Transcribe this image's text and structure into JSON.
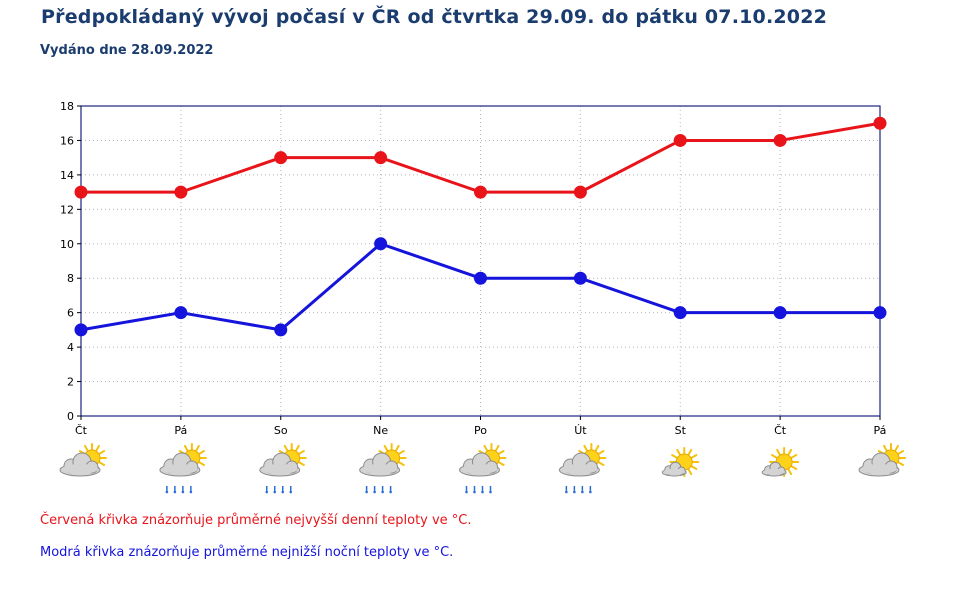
{
  "header": {
    "title": "Předpokládaný vývoj počasí v ČR od čtvrtka 29.09. do pátku 07.10.2022",
    "subtitle": "Vydáno dne 28.09.2022"
  },
  "chart_data": {
    "type": "line",
    "categories": [
      "Čt",
      "Pá",
      "So",
      "Ne",
      "Po",
      "Út",
      "St",
      "Čt",
      "Pá"
    ],
    "series": [
      {
        "key": "max",
        "color": "#e8141a",
        "values": [
          13,
          13,
          15,
          15,
          13,
          13,
          16,
          16,
          17
        ]
      },
      {
        "key": "min",
        "color": "#1414dc",
        "values": [
          5,
          6,
          5,
          10,
          8,
          8,
          6,
          6,
          6
        ]
      }
    ],
    "ylim": [
      0,
      18
    ],
    "yticks": [
      0,
      2,
      4,
      6,
      8,
      10,
      12,
      14,
      16,
      18
    ],
    "grid": true,
    "frame_color": "#1a237e",
    "weather_icons": [
      "partly-sunny-icon",
      "partly-sunny-rain-icon",
      "partly-sunny-rain-icon",
      "partly-sunny-rain-icon",
      "partly-sunny-rain-icon",
      "partly-sunny-rain-icon",
      "sunny-icon",
      "sunny-icon",
      "partly-sunny-icon"
    ]
  },
  "notes": {
    "red": "Červená křivka znázorňuje průměrné nejvyšší denní teploty ve °C.",
    "blue": "Modrá křivka znázorňuje průměrné nejnižší noční teploty ve °C.",
    "red_color": "#e8141a",
    "blue_color": "#1414dc"
  }
}
